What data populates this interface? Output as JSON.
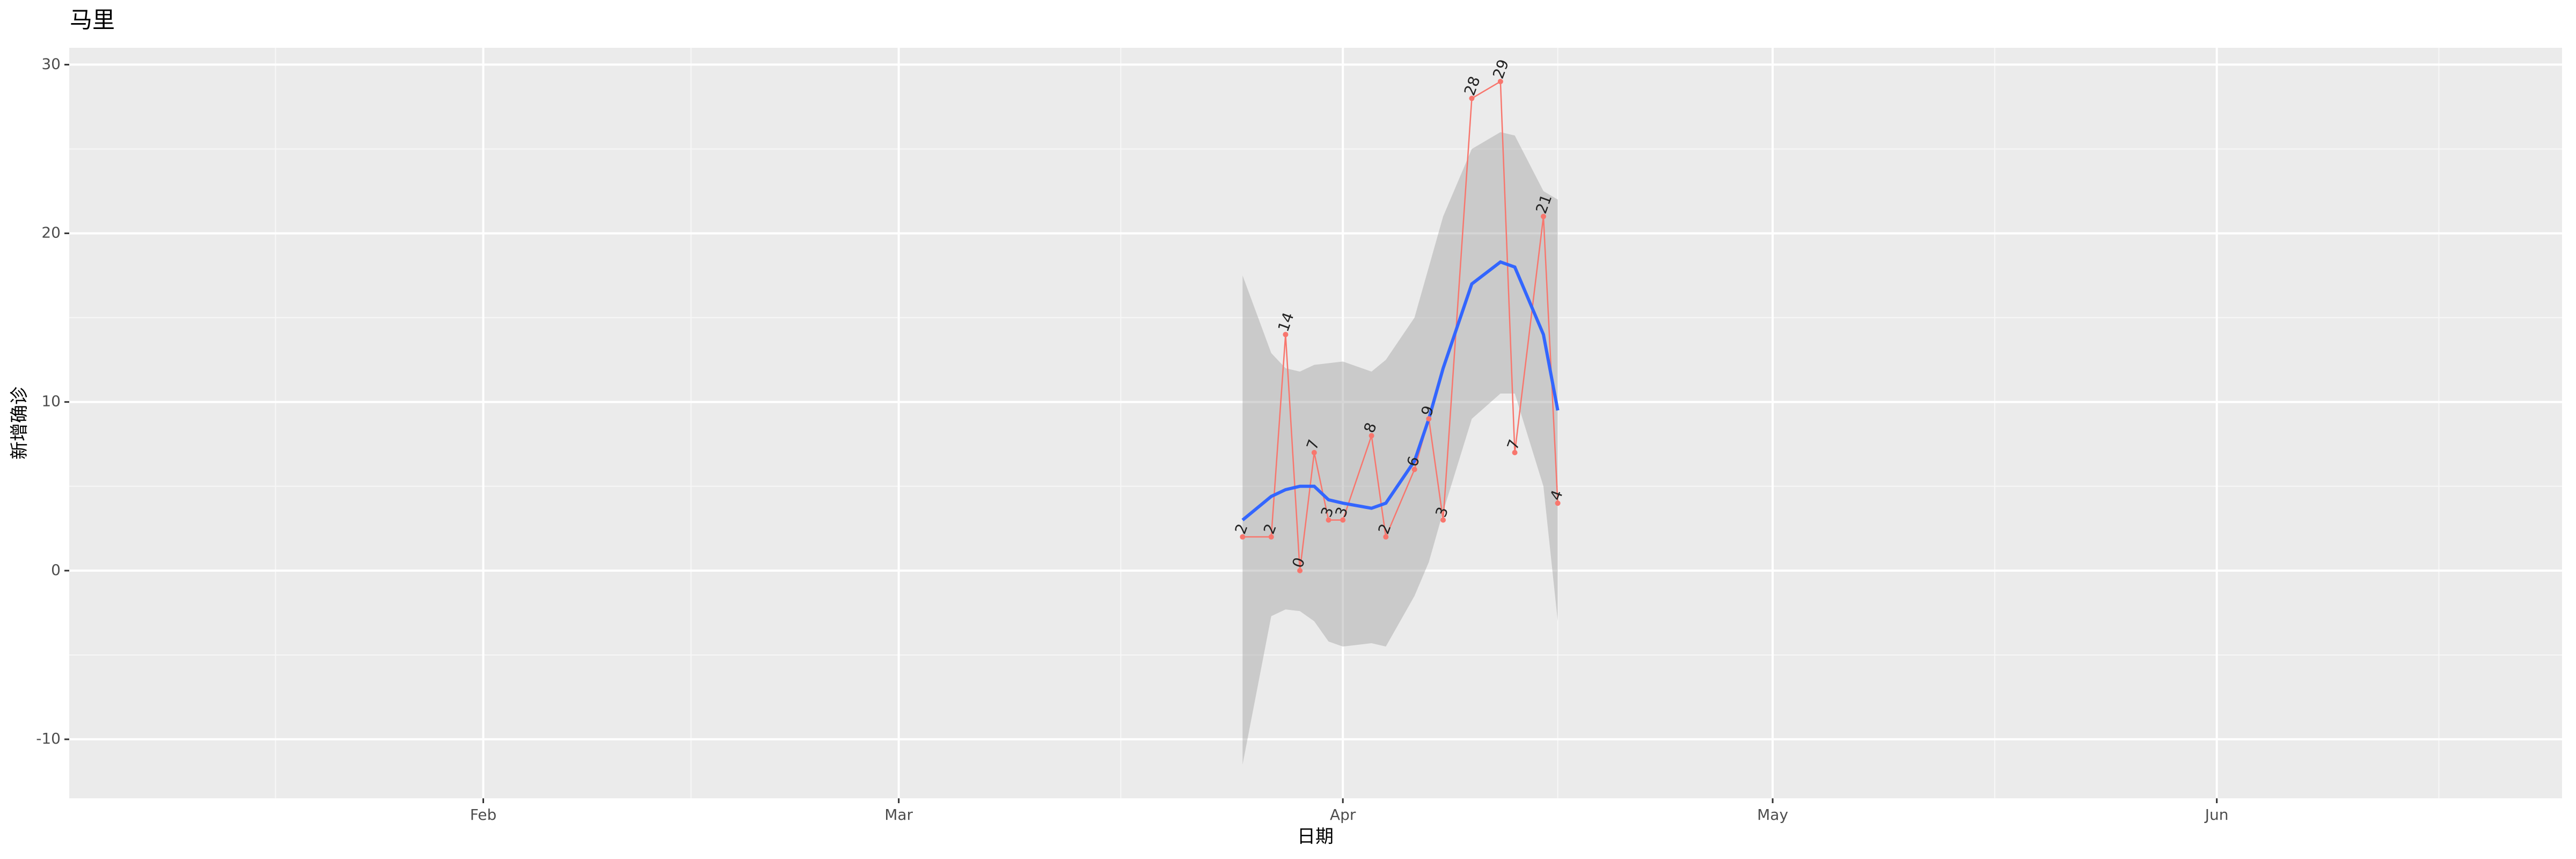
{
  "chart_data": {
    "type": "line",
    "title": "马里",
    "x_label": "日期",
    "y_label": "新增确诊",
    "x": [
      85,
      87,
      88,
      89,
      90,
      91,
      92,
      94,
      95,
      97,
      98,
      99,
      101,
      103,
      104,
      106,
      107
    ],
    "values": [
      2,
      2,
      14,
      0,
      7,
      3,
      3,
      8,
      2,
      6,
      9,
      3,
      28,
      29,
      7,
      21,
      4
    ],
    "color": "#f8766d",
    "smooth": {
      "color": "#3366ff",
      "values": [
        3.0,
        4.4,
        4.8,
        5.0,
        5.0,
        4.2,
        4.0,
        3.7,
        4.0,
        6.5,
        9.0,
        12.0,
        17.0,
        18.3,
        18.0,
        14.0,
        9.5
      ],
      "lower": [
        -11.5,
        -2.7,
        -2.3,
        -2.4,
        -3.0,
        -4.2,
        -4.5,
        -4.3,
        -4.5,
        -1.5,
        0.5,
        3.5,
        9.0,
        10.5,
        10.5,
        5.0,
        -3.0
      ],
      "upper": [
        17.5,
        12.9,
        12.0,
        11.8,
        12.2,
        12.3,
        12.4,
        11.8,
        12.5,
        15.0,
        18.0,
        21.0,
        25.0,
        26.0,
        25.8,
        22.5,
        22.0
      ]
    },
    "xlim": [
      3.1,
      177.1
    ],
    "xticks": [
      {
        "value": 32,
        "label": "Feb"
      },
      {
        "value": 61,
        "label": "Mar"
      },
      {
        "value": 92,
        "label": "Apr"
      },
      {
        "value": 122,
        "label": "May"
      },
      {
        "value": 153,
        "label": "Jun"
      }
    ],
    "ylim": [
      -13.5,
      31
    ],
    "yticks": [
      -10,
      0,
      10,
      20,
      30
    ],
    "grid": true
  }
}
